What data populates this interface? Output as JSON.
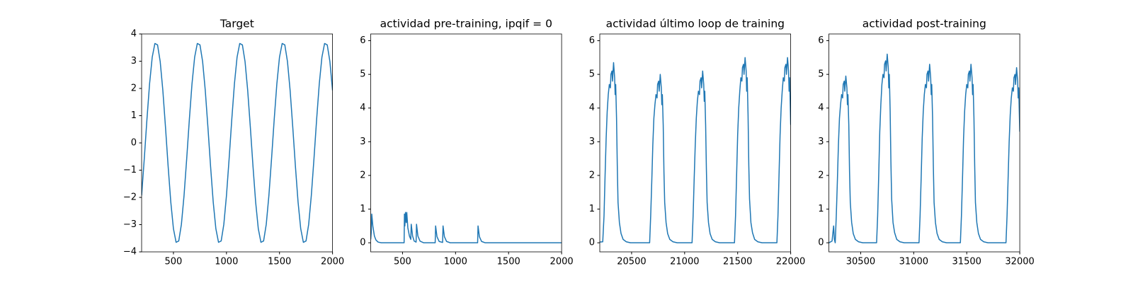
{
  "chart_data": [
    {
      "type": "line",
      "title": "Target",
      "color": "#1f77b4",
      "x": [
        200,
        225,
        250,
        275,
        300,
        325,
        350,
        375,
        400,
        425,
        450,
        475,
        500,
        525,
        550,
        575,
        600,
        625,
        650,
        675,
        700,
        725,
        750,
        775,
        800,
        825,
        850,
        875,
        900,
        925,
        950,
        975,
        1000,
        1025,
        1050,
        1075,
        1100,
        1125,
        1150,
        1175,
        1200,
        1225,
        1250,
        1275,
        1300,
        1325,
        1350,
        1375,
        1400,
        1425,
        1450,
        1475,
        1500,
        1525,
        1550,
        1575,
        1600,
        1625,
        1650,
        1675,
        1700,
        1725,
        1750,
        1775,
        1800,
        1825,
        1850,
        1875,
        1900,
        1925,
        1950,
        1975,
        2000
      ],
      "values": [
        -1.93,
        -0.58,
        0.86,
        2.17,
        3.15,
        3.65,
        3.6,
        2.99,
        1.93,
        0.58,
        -0.86,
        -2.17,
        -3.15,
        -3.65,
        -3.6,
        -2.99,
        -1.93,
        -0.58,
        0.86,
        2.17,
        3.15,
        3.65,
        3.6,
        2.99,
        1.93,
        0.58,
        -0.86,
        -2.17,
        -3.15,
        -3.65,
        -3.6,
        -2.99,
        -1.93,
        -0.58,
        0.86,
        2.17,
        3.15,
        3.65,
        3.6,
        2.99,
        1.93,
        0.58,
        -0.86,
        -2.17,
        -3.15,
        -3.65,
        -3.6,
        -2.99,
        -1.93,
        -0.58,
        0.86,
        2.17,
        3.15,
        3.65,
        3.6,
        2.99,
        1.93,
        0.58,
        -0.86,
        -2.17,
        -3.15,
        -3.65,
        -3.6,
        -2.99,
        -1.93,
        -0.58,
        0.86,
        2.17,
        3.15,
        3.65,
        3.6,
        2.99,
        1.93
      ],
      "xlim": [
        200,
        2000
      ],
      "xticks": [
        500,
        1000,
        1500,
        2000
      ],
      "ylim": [
        -4,
        4
      ],
      "yticks": [
        {
          "value": -4,
          "label": "−4"
        },
        {
          "value": -3,
          "label": "−3"
        },
        {
          "value": -2,
          "label": "−2"
        },
        {
          "value": -1,
          "label": "−1"
        },
        0,
        1,
        2,
        3,
        4
      ]
    },
    {
      "type": "line",
      "title": "actividad pre-training, ipqif = 0",
      "color": "#1f77b4",
      "x": [
        200,
        205,
        210,
        220,
        235,
        250,
        270,
        300,
        515,
        518,
        522,
        528,
        535,
        540,
        550,
        565,
        578,
        582,
        595,
        610,
        628,
        632,
        645,
        665,
        700,
        808,
        812,
        825,
        845,
        878,
        882,
        895,
        915,
        950,
        1208,
        1212,
        1225,
        1245,
        1280,
        2000
      ],
      "values": [
        0.1,
        0.3,
        0.85,
        0.5,
        0.2,
        0.08,
        0.02,
        0,
        0,
        0.85,
        0.5,
        0.9,
        0.6,
        0.9,
        0.45,
        0.2,
        0.1,
        0.55,
        0.2,
        0.05,
        0.02,
        0.55,
        0.2,
        0.05,
        0,
        0,
        0.5,
        0.18,
        0.04,
        0.01,
        0.5,
        0.18,
        0.04,
        0,
        0,
        0.5,
        0.18,
        0.04,
        0,
        0
      ],
      "xlim": [
        200,
        2000
      ],
      "xticks": [
        500,
        1000,
        1500,
        2000
      ],
      "ylim": [
        -0.27,
        6.2
      ],
      "yticks": [
        0,
        1,
        2,
        3,
        4,
        5,
        6
      ]
    },
    {
      "type": "line",
      "title": "actividad último loop de training",
      "color": "#1f77b4",
      "x": [
        20200,
        20228,
        20240,
        20250,
        20260,
        20270,
        20280,
        20290,
        20300,
        20305,
        20315,
        20320,
        20330,
        20340,
        20345,
        20350,
        20358,
        20365,
        20372,
        20385,
        20400,
        20420,
        20450,
        20490,
        20670,
        20680,
        20690,
        20700,
        20710,
        20720,
        20730,
        20740,
        20745,
        20755,
        20760,
        20770,
        20780,
        20785,
        20790,
        20798,
        20805,
        20812,
        20825,
        20840,
        20860,
        20890,
        20930,
        21070,
        21080,
        21090,
        21100,
        21110,
        21120,
        21130,
        21140,
        21145,
        21155,
        21160,
        21170,
        21180,
        21185,
        21190,
        21198,
        21205,
        21212,
        21225,
        21240,
        21260,
        21290,
        21330,
        21470,
        21480,
        21490,
        21500,
        21510,
        21520,
        21530,
        21540,
        21545,
        21555,
        21560,
        21570,
        21580,
        21585,
        21590,
        21598,
        21605,
        21612,
        21625,
        21640,
        21660,
        21690,
        21730,
        21870,
        21880,
        21890,
        21900,
        21910,
        21920,
        21930,
        21940,
        21945,
        21955,
        21960,
        21970,
        21980,
        21985,
        21990,
        22000
      ],
      "values": [
        0.02,
        0.03,
        0.8,
        2.0,
        3.1,
        3.9,
        4.4,
        4.7,
        4.6,
        5.0,
        5.1,
        4.8,
        5.35,
        4.9,
        4.4,
        4.7,
        3.7,
        2.3,
        1.2,
        0.6,
        0.28,
        0.1,
        0.03,
        0,
        0,
        0.8,
        1.8,
        2.9,
        3.7,
        4.1,
        4.4,
        4.3,
        4.7,
        4.8,
        4.5,
        5.0,
        4.6,
        4.1,
        4.4,
        3.5,
        2.1,
        1.2,
        0.6,
        0.27,
        0.1,
        0.03,
        0,
        0,
        0.8,
        1.9,
        2.9,
        3.7,
        4.2,
        4.5,
        4.4,
        4.8,
        4.9,
        4.6,
        5.1,
        4.7,
        4.2,
        4.5,
        3.5,
        2.2,
        1.2,
        0.6,
        0.27,
        0.1,
        0.03,
        0,
        0,
        0.8,
        2.0,
        3.2,
        4.0,
        4.5,
        4.9,
        4.8,
        5.2,
        5.3,
        5.0,
        5.5,
        5.1,
        4.5,
        4.9,
        3.8,
        2.3,
        1.3,
        0.6,
        0.3,
        0.1,
        0.03,
        0,
        0,
        0.8,
        2.0,
        3.2,
        4.0,
        4.5,
        4.9,
        4.8,
        5.2,
        5.3,
        5.0,
        5.5,
        5.1,
        4.5,
        4.9,
        3.5
      ],
      "xlim": [
        20200,
        22000
      ],
      "xticks": [
        20500,
        21000,
        21500,
        22000
      ],
      "ylim": [
        -0.27,
        6.2
      ],
      "yticks": [
        0,
        1,
        2,
        3,
        4,
        5,
        6
      ]
    },
    {
      "type": "line",
      "title": "actividad post-training",
      "color": "#1f77b4",
      "x": [
        30200,
        30230,
        30245,
        30252,
        30260,
        30270,
        30280,
        30290,
        30300,
        30310,
        30320,
        30330,
        30335,
        30345,
        30350,
        30360,
        30370,
        30375,
        30380,
        30388,
        30395,
        30402,
        30415,
        30430,
        30450,
        30480,
        30520,
        30650,
        30660,
        30670,
        30680,
        30690,
        30700,
        30710,
        30720,
        30725,
        30735,
        30740,
        30750,
        30760,
        30765,
        30770,
        30778,
        30785,
        30792,
        30805,
        30820,
        30840,
        30870,
        30910,
        31050,
        31060,
        31070,
        31080,
        31090,
        31100,
        31110,
        31120,
        31125,
        31135,
        31140,
        31150,
        31160,
        31165,
        31170,
        31178,
        31185,
        31192,
        31205,
        31220,
        31240,
        31270,
        31310,
        31440,
        31450,
        31460,
        31470,
        31480,
        31490,
        31500,
        31510,
        31515,
        31525,
        31530,
        31540,
        31550,
        31555,
        31560,
        31568,
        31575,
        31582,
        31595,
        31610,
        31630,
        31660,
        31700,
        31870,
        31880,
        31890,
        31900,
        31910,
        31920,
        31930,
        31940,
        31945,
        31955,
        31960,
        31970,
        31980,
        31985,
        31990,
        32000
      ],
      "values": [
        0,
        0.05,
        0.5,
        0.1,
        0,
        0.8,
        1.8,
        2.9,
        3.7,
        4.1,
        4.4,
        4.3,
        4.7,
        4.8,
        4.5,
        4.95,
        4.6,
        4.1,
        4.4,
        3.5,
        2.1,
        1.2,
        0.6,
        0.27,
        0.1,
        0.03,
        0,
        0,
        0.8,
        2.0,
        3.3,
        4.1,
        4.7,
        5.0,
        4.9,
        5.3,
        5.4,
        5.1,
        5.6,
        5.2,
        4.6,
        5.0,
        3.9,
        2.4,
        1.3,
        0.6,
        0.3,
        0.1,
        0.03,
        0,
        0,
        0.8,
        1.9,
        3.1,
        3.9,
        4.4,
        4.7,
        4.6,
        5.0,
        5.1,
        4.8,
        5.3,
        4.9,
        4.4,
        4.7,
        3.7,
        2.3,
        1.2,
        0.6,
        0.28,
        0.1,
        0.03,
        0,
        0,
        0.8,
        1.9,
        3.1,
        3.9,
        4.4,
        4.7,
        4.6,
        5.0,
        5.1,
        4.8,
        5.3,
        4.9,
        4.4,
        4.7,
        3.7,
        2.3,
        1.2,
        0.6,
        0.28,
        0.1,
        0.03,
        0,
        0,
        0.8,
        1.9,
        3.0,
        3.8,
        4.3,
        4.6,
        4.5,
        4.9,
        5.0,
        4.7,
        5.2,
        4.8,
        4.3,
        4.6,
        3.3
      ],
      "xlim": [
        30200,
        32000
      ],
      "xticks": [
        30500,
        31000,
        31500,
        32000
      ],
      "ylim": [
        -0.27,
        6.2
      ],
      "yticks": [
        0,
        1,
        2,
        3,
        4,
        5,
        6
      ]
    }
  ]
}
